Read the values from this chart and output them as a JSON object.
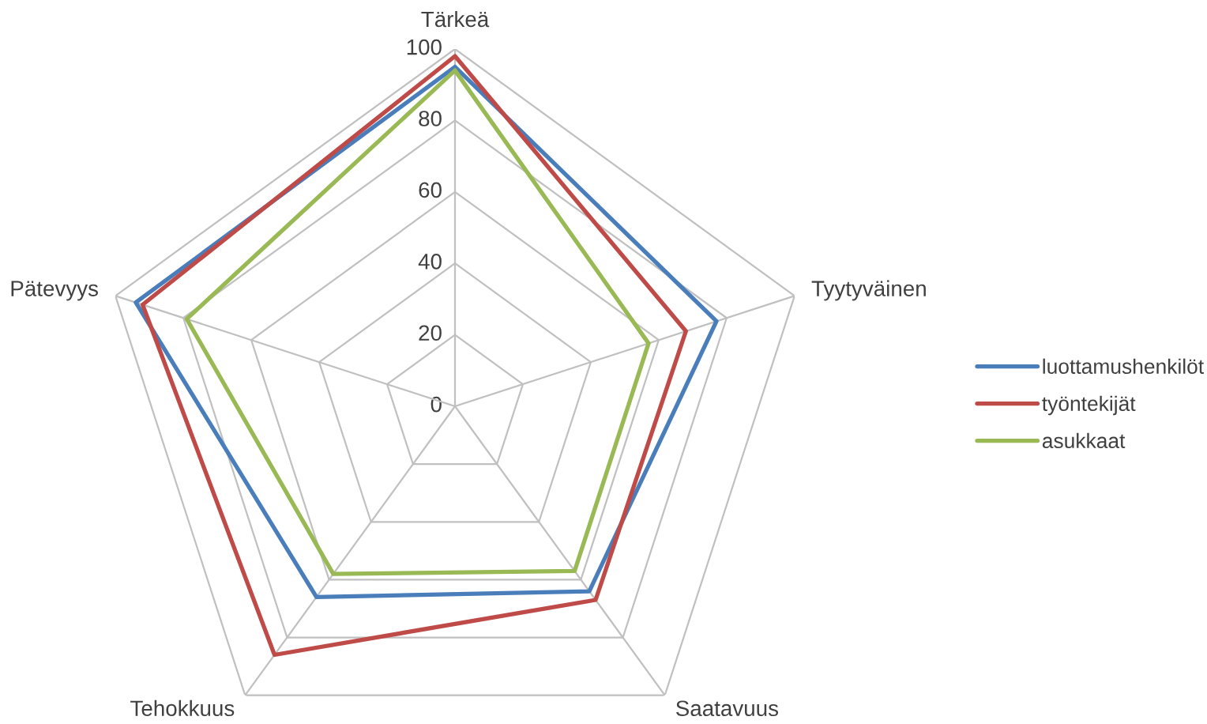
{
  "chart_data": {
    "type": "radar",
    "categories": [
      "Tärkeä",
      "Tyytyväinen",
      "Saatavuus",
      "Tehokkuus",
      "Pätevyys"
    ],
    "series": [
      {
        "name": "luottamushenkilöt",
        "color": "#4a7ebb",
        "values": [
          95,
          77,
          64,
          66,
          94
        ]
      },
      {
        "name": "työntekijät",
        "color": "#be4b48",
        "values": [
          98,
          68,
          67,
          86,
          92
        ]
      },
      {
        "name": "asukkaat",
        "color": "#98b954",
        "values": [
          94,
          57,
          57,
          58,
          79
        ]
      }
    ],
    "ylim": [
      0,
      100
    ],
    "yticks": [
      0,
      20,
      40,
      60,
      80,
      100
    ],
    "grid": true,
    "legend": "right",
    "line_style": "solid"
  }
}
